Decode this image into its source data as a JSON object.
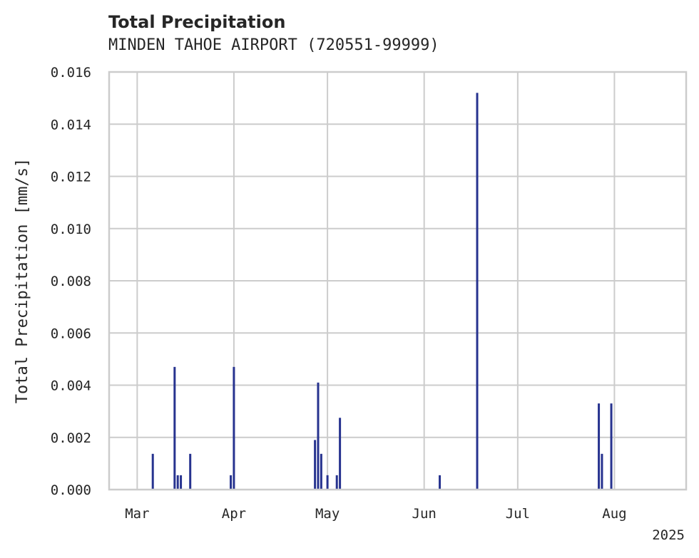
{
  "chart_data": {
    "type": "bar",
    "title": "Total Precipitation",
    "subtitle": "MINDEN TAHOE AIRPORT (720551-99999)",
    "xlabel": "",
    "ylabel": "Total Precipitation [mm/s]",
    "xlim": [
      "2025-02-20",
      "2025-08-24"
    ],
    "ylim": [
      0,
      0.016
    ],
    "grid": true,
    "x_ticks": [
      {
        "date": "2025-03-01",
        "label": "Mar"
      },
      {
        "date": "2025-04-01",
        "label": "Apr"
      },
      {
        "date": "2025-05-01",
        "label": "May"
      },
      {
        "date": "2025-06-01",
        "label": "Jun"
      },
      {
        "date": "2025-07-01",
        "label": "Jul"
      },
      {
        "date": "2025-08-01",
        "label": "Aug"
      }
    ],
    "x_offset_label": "2025",
    "y_ticks": [
      "0.000",
      "0.002",
      "0.004",
      "0.006",
      "0.008",
      "0.010",
      "0.012",
      "0.014",
      "0.016"
    ],
    "y_tick_values": [
      0,
      0.002,
      0.004,
      0.006,
      0.008,
      0.01,
      0.012,
      0.014,
      0.016
    ],
    "series": [
      {
        "name": "Total Precipitation",
        "color": "#27338f",
        "points": [
          {
            "date": "2025-03-06",
            "value": 0.00137
          },
          {
            "date": "2025-03-13",
            "value": 0.0047
          },
          {
            "date": "2025-03-14",
            "value": 0.00055
          },
          {
            "date": "2025-03-15",
            "value": 0.00055
          },
          {
            "date": "2025-03-18",
            "value": 0.00137
          },
          {
            "date": "2025-03-31",
            "value": 0.00055
          },
          {
            "date": "2025-04-01",
            "value": 0.0047
          },
          {
            "date": "2025-04-27",
            "value": 0.0019
          },
          {
            "date": "2025-04-28",
            "value": 0.0041
          },
          {
            "date": "2025-04-29",
            "value": 0.00137
          },
          {
            "date": "2025-05-01",
            "value": 0.00055
          },
          {
            "date": "2025-05-04",
            "value": 0.00055
          },
          {
            "date": "2025-05-05",
            "value": 0.00275
          },
          {
            "date": "2025-06-06",
            "value": 0.00055
          },
          {
            "date": "2025-06-18",
            "value": 0.0152
          },
          {
            "date": "2025-07-27",
            "value": 0.0033
          },
          {
            "date": "2025-07-28",
            "value": 0.00137
          },
          {
            "date": "2025-07-31",
            "value": 0.0033
          }
        ]
      }
    ]
  }
}
